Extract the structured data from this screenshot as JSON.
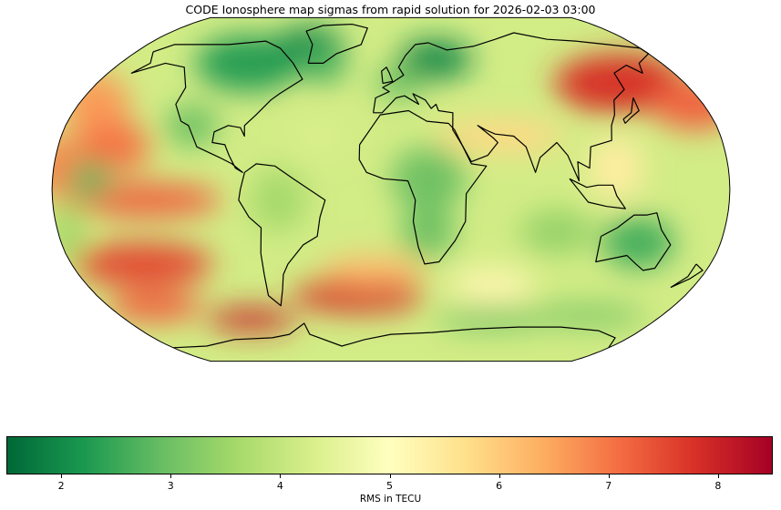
{
  "title": "CODE Ionosphere map sigmas from rapid solution for 2026-02-03 03:00",
  "projection": "Robinson",
  "colormap": "RdYlGn_r",
  "colorbar": {
    "label": "RMS in TECU",
    "range": [
      1.5,
      8.5
    ],
    "ticks": [
      "2",
      "3",
      "4",
      "5",
      "6",
      "7",
      "8"
    ],
    "colors": [
      "#006837",
      "#1a9850",
      "#66bd63",
      "#a6d96a",
      "#d9ef8b",
      "#ffffbf",
      "#fee08b",
      "#fdae61",
      "#f46d43",
      "#d73027",
      "#a50026"
    ]
  }
}
